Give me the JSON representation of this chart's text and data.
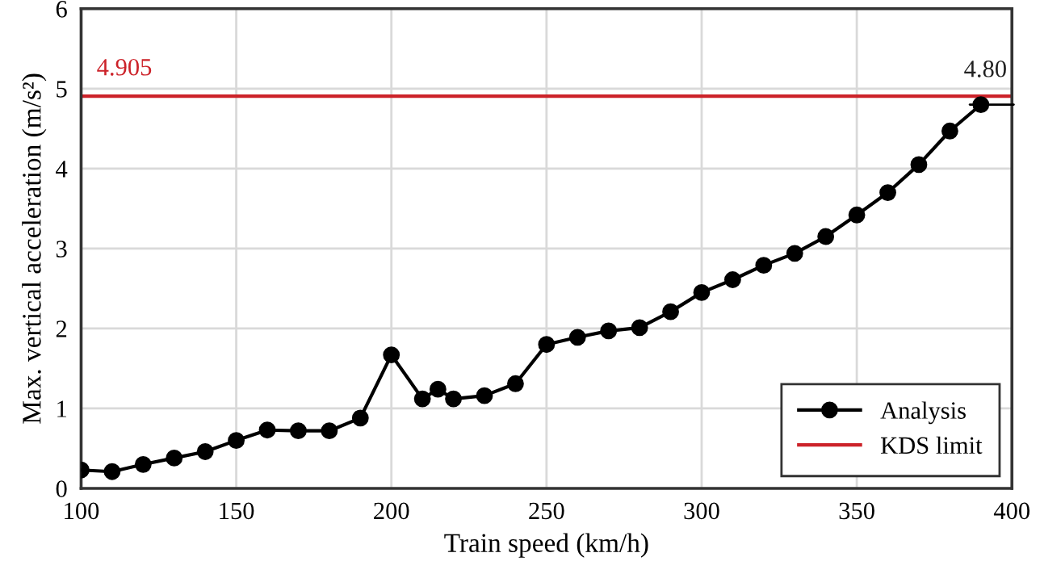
{
  "chart_data": {
    "type": "line",
    "xlabel": "Train speed (km/h)",
    "ylabel": "Max. vertical acceleration (m/s²)",
    "x": [
      100,
      110,
      120,
      130,
      140,
      150,
      160,
      170,
      180,
      190,
      200,
      210,
      215,
      220,
      230,
      240,
      250,
      260,
      270,
      280,
      290,
      300,
      310,
      320,
      330,
      340,
      350,
      360,
      370,
      380,
      390
    ],
    "series": [
      {
        "name": "Analysis",
        "color": "#000000",
        "values": [
          0.23,
          0.21,
          0.3,
          0.38,
          0.46,
          0.6,
          0.73,
          0.72,
          0.72,
          0.88,
          1.67,
          1.12,
          1.24,
          1.12,
          1.16,
          1.31,
          1.8,
          1.89,
          1.97,
          2.01,
          2.21,
          2.45,
          2.61,
          2.79,
          2.94,
          3.15,
          3.42,
          3.7,
          4.05,
          4.47,
          4.8
        ]
      }
    ],
    "marker": "circle",
    "line_style": "solid",
    "xlim": [
      100,
      400
    ],
    "xticks": [
      100,
      150,
      200,
      250,
      300,
      350,
      400
    ],
    "ylim": [
      0,
      6
    ],
    "yticks": [
      0,
      1,
      2,
      3,
      4,
      5,
      6
    ],
    "grid": true,
    "legend": "bottom right",
    "ref_lines": [
      {
        "axis": "y",
        "value": 4.905,
        "label": "KDS limit",
        "color": "#cc2229"
      }
    ],
    "annotations": [
      {
        "text": "4.905",
        "x": 105,
        "y": 4.905
      },
      {
        "text": "4.80",
        "x": 390,
        "y": 4.8
      }
    ]
  }
}
